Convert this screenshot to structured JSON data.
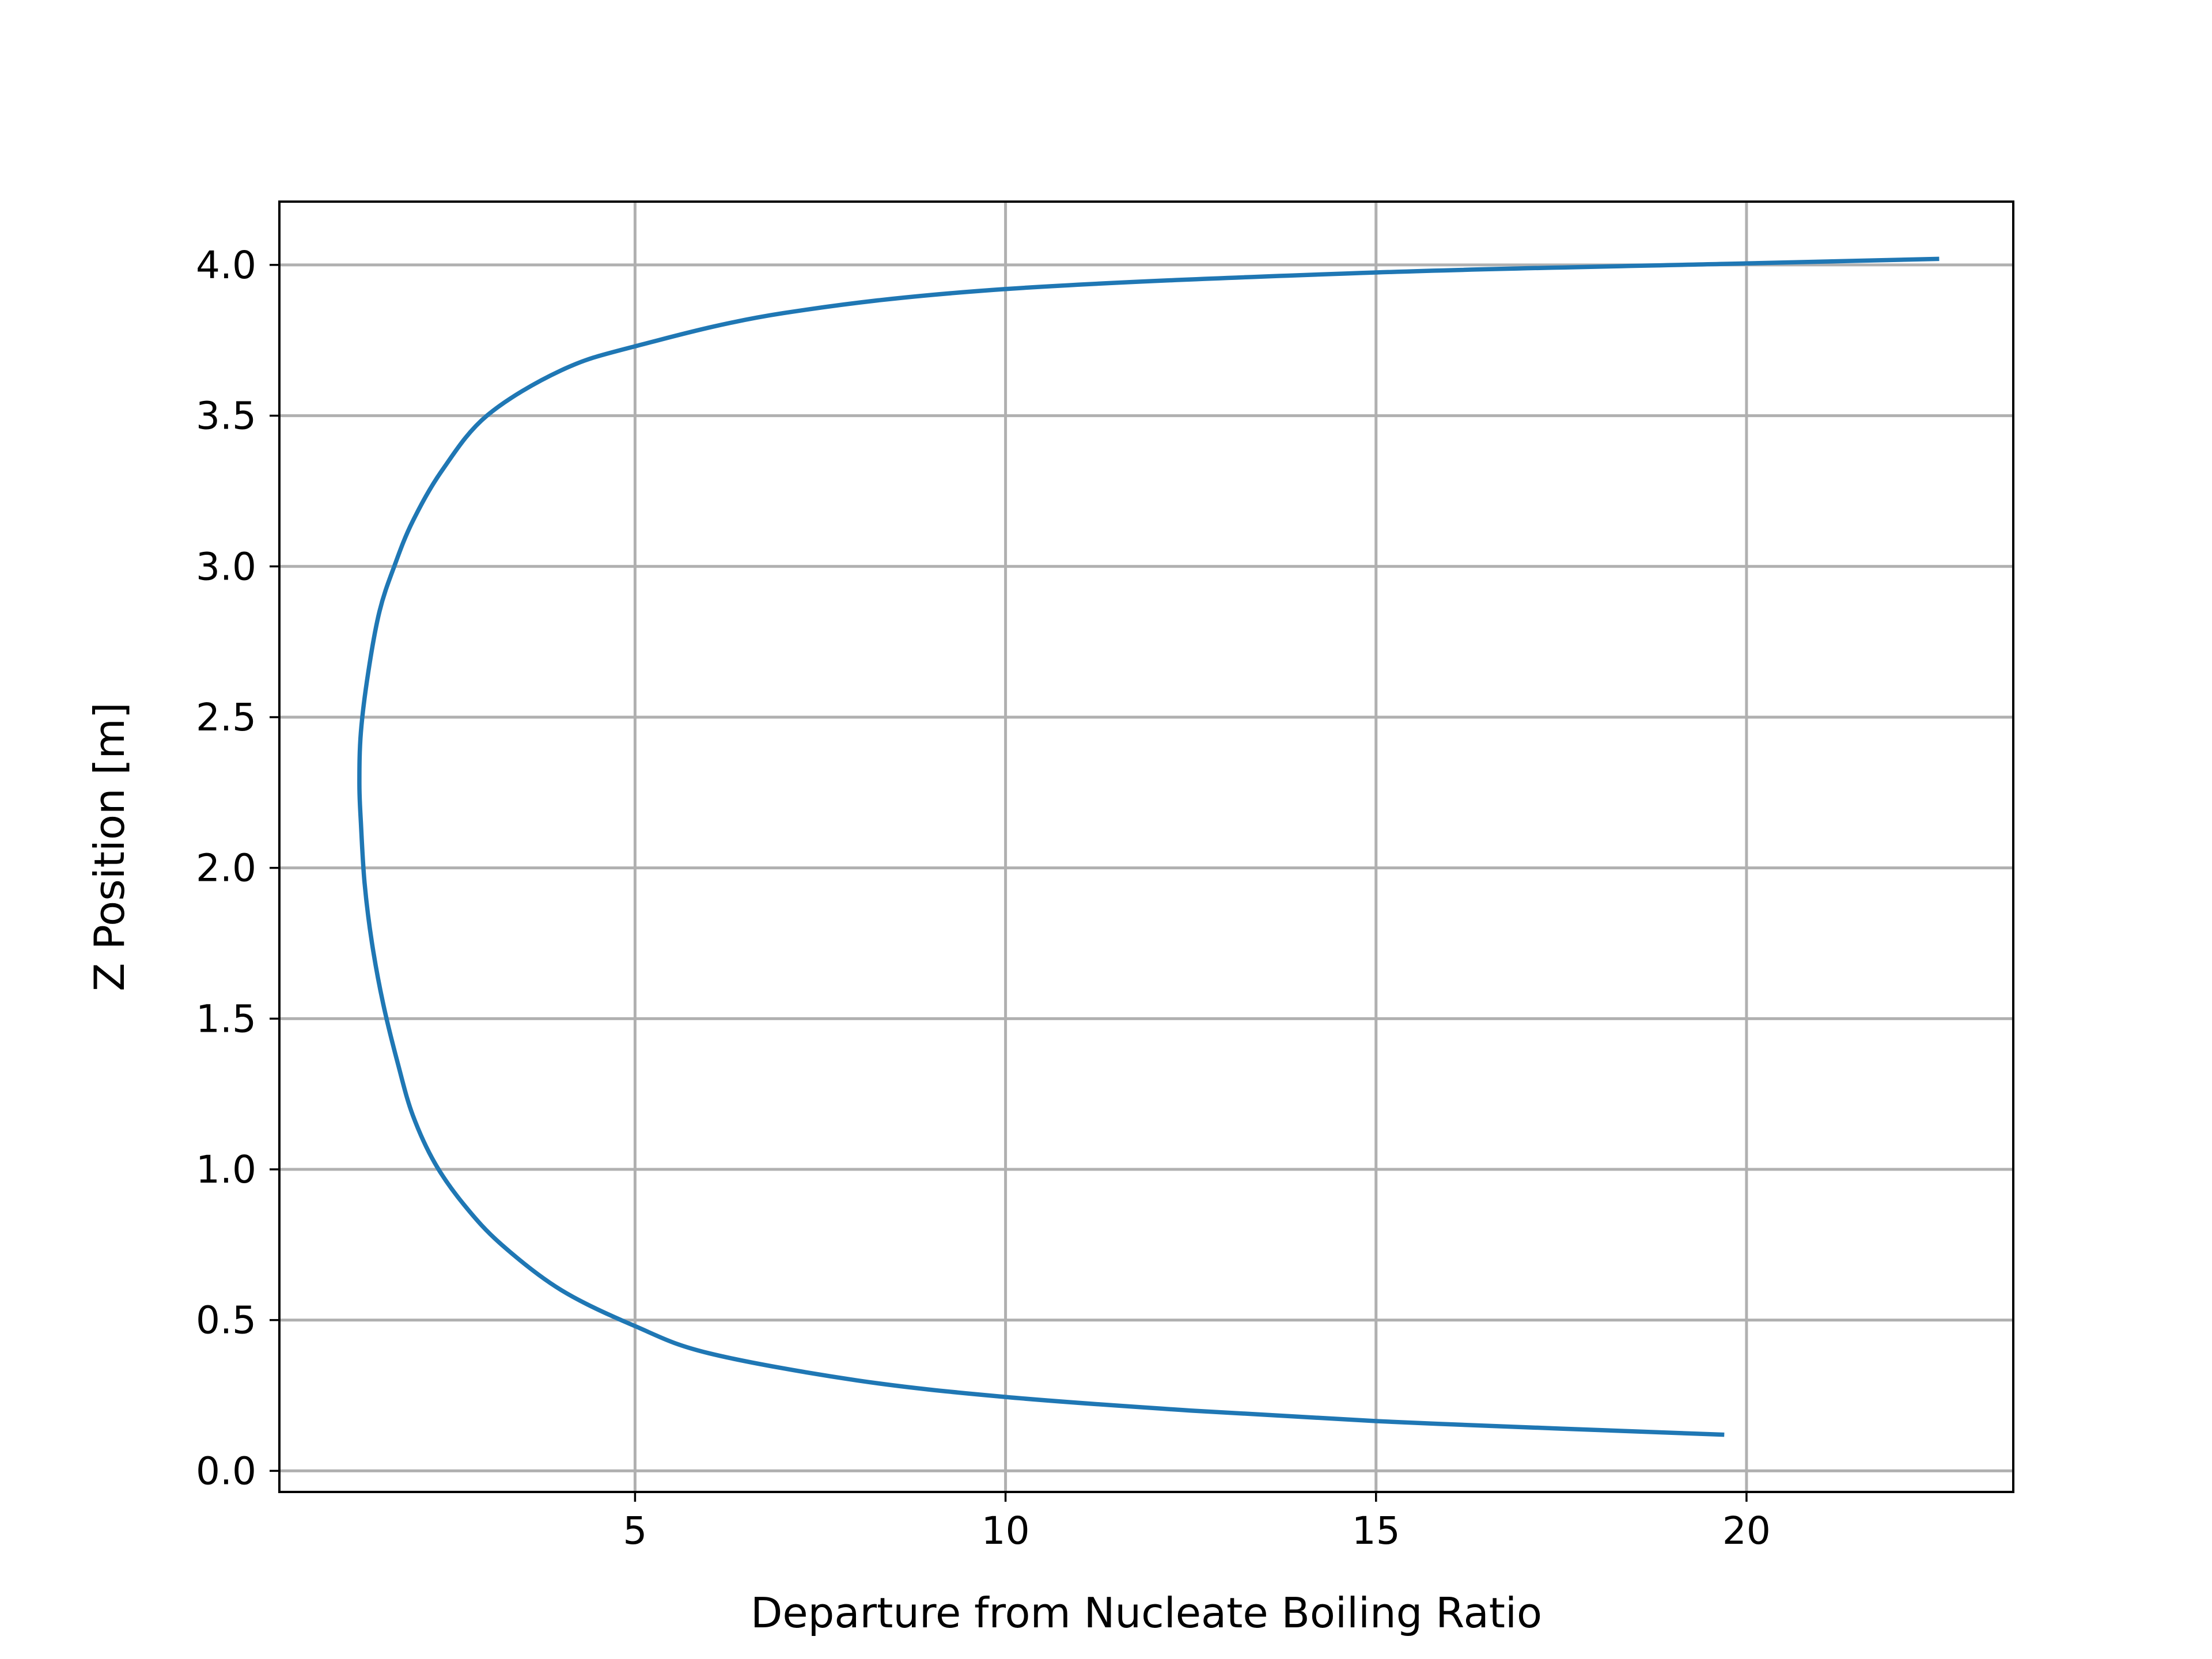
{
  "chart_data": {
    "type": "line",
    "title": "",
    "xlabel": "Departure from Nucleate Boiling Ratio",
    "ylabel": "Z Position [m]",
    "xlim": [
      0.2,
      23.6
    ],
    "ylim": [
      -0.07,
      4.21
    ],
    "x_ticks": [
      5,
      10,
      15,
      20
    ],
    "x_tick_labels": [
      "5",
      "10",
      "15",
      "20"
    ],
    "y_ticks": [
      0.0,
      0.5,
      1.0,
      1.5,
      2.0,
      2.5,
      3.0,
      3.5,
      4.0
    ],
    "y_tick_labels": [
      "0.0",
      "0.5",
      "1.0",
      "1.5",
      "2.0",
      "2.5",
      "3.0",
      "3.5",
      "4.0"
    ],
    "grid": true,
    "legend": "none",
    "series": [
      {
        "color": "#1f77b4",
        "x": [
          19.7,
          17.5,
          15.0,
          12.5,
          10.0,
          8.0,
          6.0,
          5.0,
          4.0,
          3.2,
          2.7,
          2.3,
          2.0,
          1.8,
          1.6,
          1.45,
          1.35,
          1.3,
          1.28,
          1.3,
          1.4,
          1.55,
          1.75,
          2.0,
          2.4,
          3.0,
          4.0,
          5.0,
          7.0,
          10.0,
          15.0,
          20.0,
          22.6
        ],
        "y": [
          0.12,
          0.14,
          0.165,
          0.2,
          0.245,
          0.3,
          0.39,
          0.48,
          0.6,
          0.75,
          0.88,
          1.02,
          1.18,
          1.35,
          1.55,
          1.75,
          1.95,
          2.15,
          2.28,
          2.45,
          2.65,
          2.85,
          3.0,
          3.15,
          3.32,
          3.5,
          3.65,
          3.73,
          3.84,
          3.92,
          3.975,
          4.005,
          4.02
        ]
      }
    ]
  }
}
